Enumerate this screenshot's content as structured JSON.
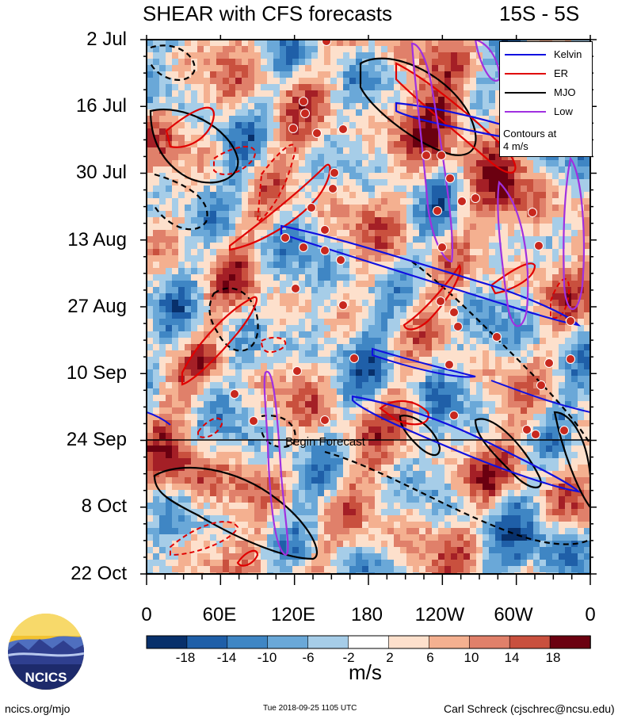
{
  "title": "SHEAR with CFS forecasts",
  "region": "15S - 5S",
  "y_tick_labels": [
    "2 Jul",
    "16 Jul",
    "30 Jul",
    "13 Aug",
    "27 Aug",
    "10 Sep",
    "24 Sep",
    "8 Oct",
    "22 Oct"
  ],
  "x_tick_labels": [
    "0",
    "60E",
    "120E",
    "180",
    "120W",
    "60W",
    "0"
  ],
  "forecast_label": "Begin Forecast",
  "legend": {
    "items": [
      {
        "label": "Kelvin",
        "color": "#1010e0"
      },
      {
        "label": "ER",
        "color": "#e00000"
      },
      {
        "label": "MJO",
        "color": "#000000"
      },
      {
        "label": "Low",
        "color": "#a030e0"
      }
    ],
    "note_line1": "Contours at",
    "note_line2": "4 m/s"
  },
  "colorbar": {
    "tick_labels": [
      "-18",
      "-14",
      "-10",
      "-6",
      "-2",
      "2",
      "6",
      "10",
      "14",
      "18"
    ],
    "colors": [
      "#08306b",
      "#1f5fa8",
      "#3f86c4",
      "#6aa8d8",
      "#a6cde8",
      "#d8ebf5",
      "#ffffff",
      "#fde0cc",
      "#f4b090",
      "#e0806a",
      "#c9503e",
      "#a41f26",
      "#6b0010"
    ],
    "units": "m/s"
  },
  "logo_text": "NCICS",
  "footer": {
    "left": "ncics.org/mjo",
    "middle": "Tue 2018-09-25 1105 UTC",
    "right": "Carl Schreck (cjschrec@ncsu.edu)"
  },
  "chart_data": {
    "type": "heatmap",
    "title": "SHEAR with CFS forecasts",
    "subtitle": "15S - 5S",
    "x_axis": {
      "label": "",
      "ticks": [
        "0",
        "60E",
        "120E",
        "180",
        "120W",
        "60W",
        "0"
      ],
      "range": [
        0,
        360
      ]
    },
    "y_axis": {
      "label": "",
      "ticks": [
        "2 Jul",
        "16 Jul",
        "30 Jul",
        "13 Aug",
        "27 Aug",
        "10 Sep",
        "24 Sep",
        "8 Oct",
        "22 Oct"
      ],
      "range": [
        "2018-07-02",
        "2018-10-22"
      ]
    },
    "colorbar": {
      "units": "m/s",
      "levels": [
        -18,
        -14,
        -10,
        -6,
        -2,
        2,
        6,
        10,
        14,
        18
      ]
    },
    "forecast_start": "2018-09-24",
    "series": [
      {
        "name": "Kelvin",
        "color": "#1010e0",
        "contour": "4 m/s"
      },
      {
        "name": "ER",
        "color": "#e00000",
        "contour": "4 m/s"
      },
      {
        "name": "MJO",
        "color": "#000000",
        "contour": "4 m/s"
      },
      {
        "name": "Low",
        "color": "#a030e0",
        "contour": "4 m/s"
      }
    ],
    "grid": false,
    "legend_position": "top-right"
  }
}
